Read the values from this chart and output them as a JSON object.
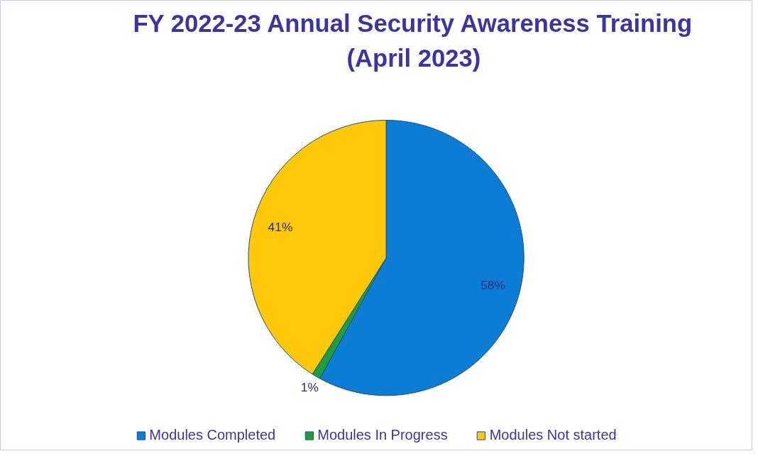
{
  "chart_data": {
    "type": "pie",
    "title": "FY 2022-23 Annual Security Awareness Training\n(April 2023)",
    "categories": [
      "Modules Completed",
      "Modules In Progress",
      "Modules Not started"
    ],
    "values": [
      58,
      1,
      41
    ],
    "colors": [
      "#0b7dd4",
      "#1f9e3c",
      "#ffc90a"
    ],
    "value_labels": [
      "58%",
      "1%",
      "41%"
    ],
    "legend": "bottom"
  }
}
